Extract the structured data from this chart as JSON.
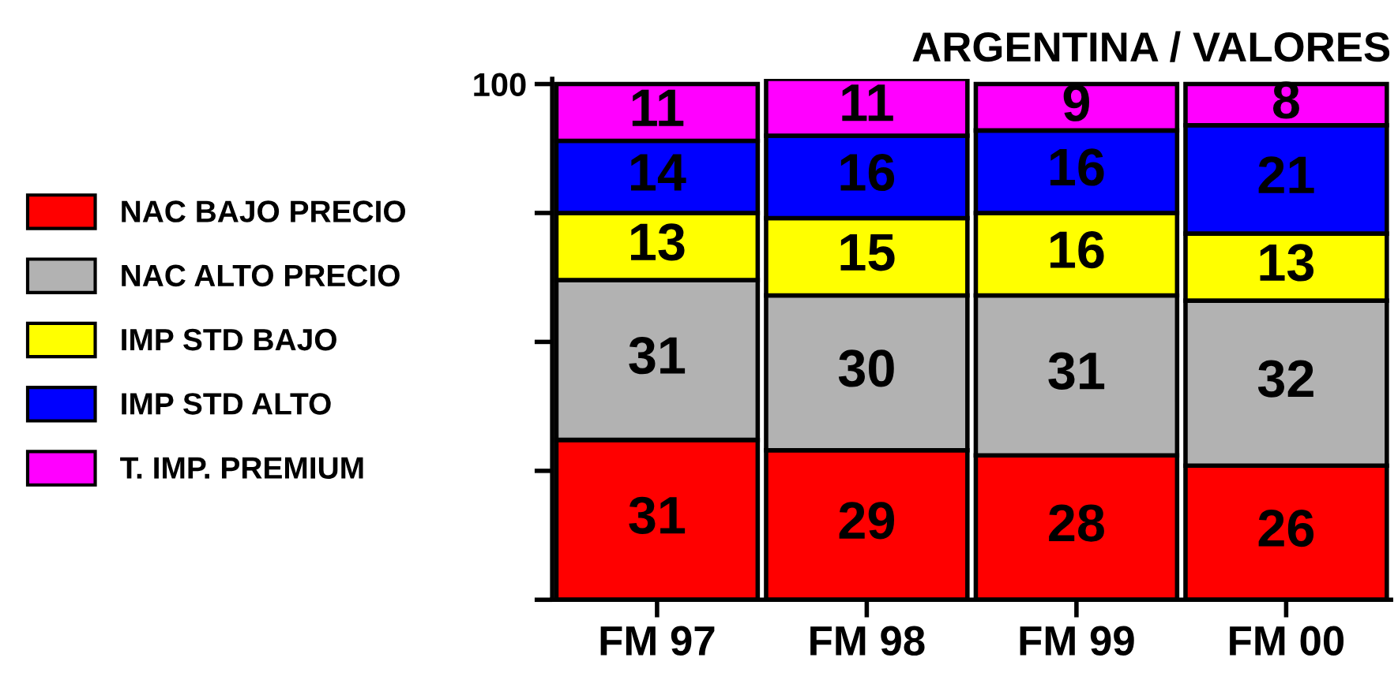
{
  "chart_data": {
    "type": "bar",
    "title": "ARGENTINA / VALORES",
    "stacked": true,
    "categories": [
      "FM 97",
      "FM 98",
      "FM 99",
      "FM 00"
    ],
    "series": [
      {
        "name": "NAC BAJO PRECIO",
        "color": "#ff0000",
        "values": [
          31,
          29,
          28,
          26
        ]
      },
      {
        "name": "NAC ALTO PRECIO",
        "color": "#b2b2b2",
        "values": [
          31,
          30,
          31,
          32
        ]
      },
      {
        "name": "IMP STD BAJO",
        "color": "#ffff00",
        "values": [
          13,
          15,
          16,
          13
        ]
      },
      {
        "name": "IMP STD ALTO",
        "color": "#0000ff",
        "values": [
          14,
          16,
          16,
          21
        ]
      },
      {
        "name": "T. IMP. PREMIUM",
        "color": "#ff00ff",
        "values": [
          11,
          11,
          9,
          8
        ]
      }
    ],
    "ylim": [
      0,
      101
    ],
    "yticks": [
      {
        "value": 0,
        "label": null
      },
      {
        "value": 25,
        "label": null
      },
      {
        "value": 50,
        "label": null
      },
      {
        "value": 75,
        "label": null
      },
      100
    ],
    "data_labels": true,
    "legend": "left",
    "grid": false
  }
}
